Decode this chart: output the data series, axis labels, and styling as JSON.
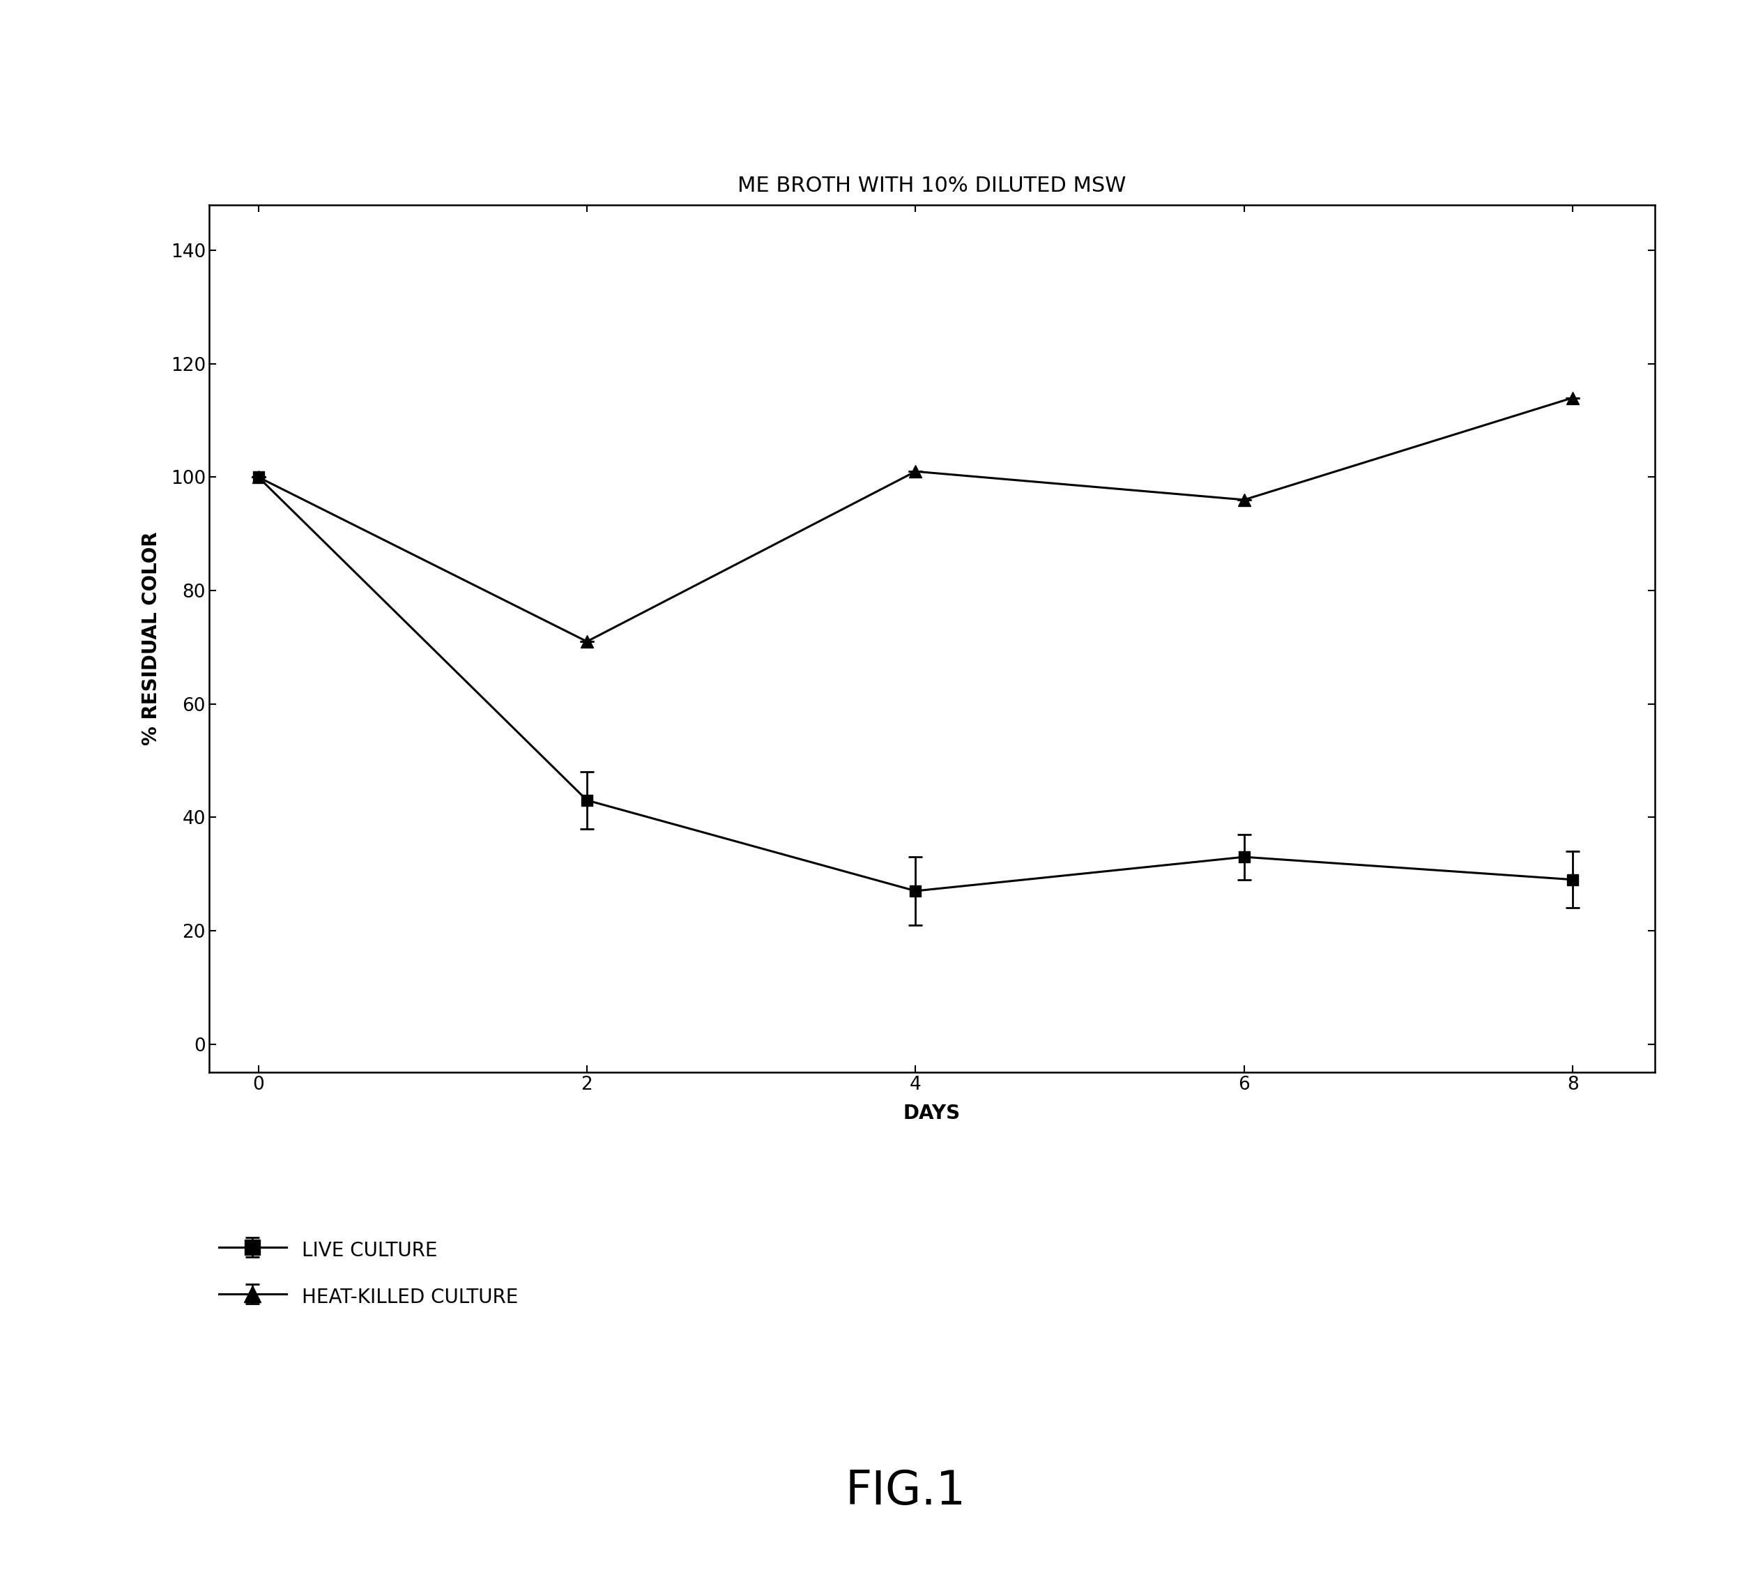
{
  "title": "ME BROTH WITH 10% DILUTED MSW",
  "xlabel": "DAYS",
  "ylabel": "% RESIDUAL COLOR",
  "x": [
    0,
    2,
    4,
    6,
    8
  ],
  "live_culture_y": [
    100,
    43,
    27,
    33,
    29
  ],
  "live_culture_yerr": [
    0,
    5,
    6,
    4,
    5
  ],
  "heat_killed_y": [
    100,
    71,
    101,
    96,
    114
  ],
  "heat_killed_yerr": [
    0,
    0,
    0,
    0,
    0
  ],
  "ylim": [
    -5,
    148
  ],
  "xlim": [
    -0.3,
    8.5
  ],
  "yticks": [
    0,
    20,
    40,
    60,
    80,
    100,
    120,
    140
  ],
  "xticks": [
    0,
    2,
    4,
    6,
    8
  ],
  "legend_live": "LIVE CULTURE",
  "legend_heat": "HEAT-KILLED CULTURE",
  "fig_label": "FIG.1",
  "line_color": "#000000",
  "background_color": "#ffffff",
  "title_fontsize": 22,
  "label_fontsize": 20,
  "tick_fontsize": 19,
  "legend_fontsize": 20,
  "fig_label_fontsize": 48
}
